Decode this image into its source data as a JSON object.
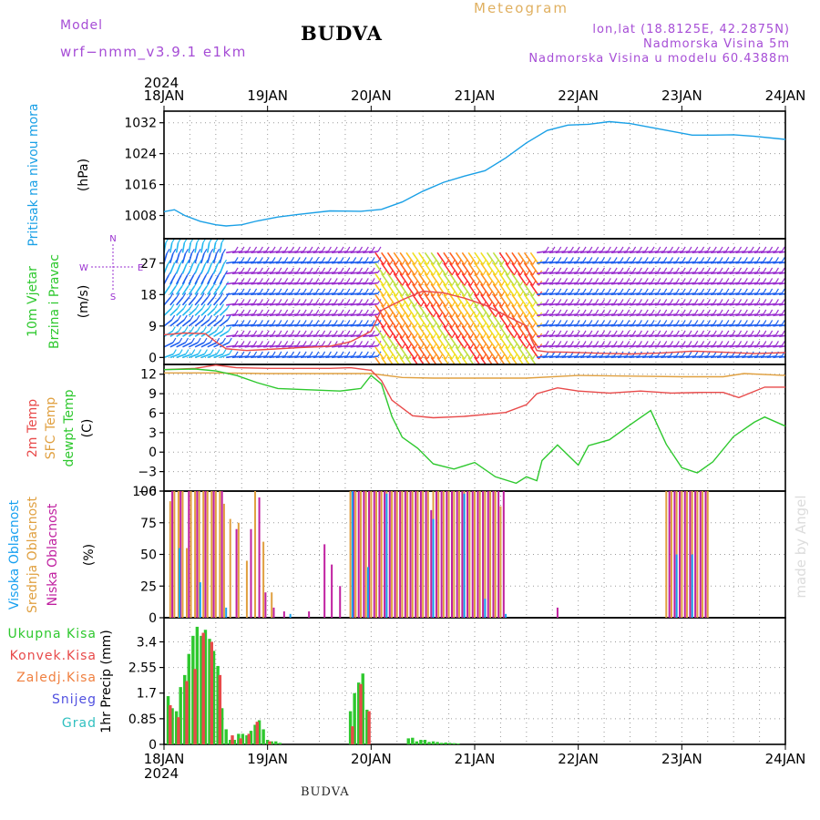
{
  "header": {
    "model_label": "Model",
    "model_version": "wrf−nmm_v3.9.1  e1km",
    "location": "BUDVA",
    "meteogram": "Meteogram",
    "coords": "lon,lat (18.8125E, 42.2875N)",
    "elevation": "Nadmorska Visina 5m",
    "model_elevation": "Nadmorska Visina u modelu 60.4388m"
  },
  "footer": {
    "location": "BUDVA",
    "credit": "made by Angel"
  },
  "colors": {
    "pressure": "#1aa0e6",
    "temp2m": "#e84a4a",
    "sfc_temp": "#e0a040",
    "dewpoint": "#2ec82e",
    "high_cloud": "#18a0f0",
    "mid_cloud": "#e0a040",
    "low_cloud": "#c020a0",
    "total_precip": "#2ec82e",
    "conv_precip": "#e84a4a",
    "frz_precip": "#f08040",
    "snow": "#5050e0",
    "grad": "#30c0c0",
    "wind_purple": "#9a30d0",
    "wind_blue": "#2060f0",
    "wind_cyan": "#20b8f0"
  },
  "chart_data": {
    "x_axis": {
      "year": "2024",
      "ticks": [
        "18JAN",
        "19JAN",
        "20JAN",
        "21JAN",
        "22JAN",
        "23JAN",
        "24JAN"
      ]
    },
    "panels": [
      {
        "id": "pressure",
        "type": "line",
        "ylabel_left": "Pritisak na nivou mora",
        "ylabel_unit": "(hPa)",
        "ylim": [
          1002,
          1035
        ],
        "yticks": [
          "1008",
          "1016",
          "1024",
          "1032"
        ],
        "ytick_values": [
          1008,
          1016,
          1024,
          1032
        ],
        "series": [
          {
            "key": "pressure",
            "color_key": "pressure",
            "x": [
              0,
              0.1,
              0.2,
              0.35,
              0.5,
              0.6,
              0.75,
              0.9,
              1.1,
              1.3,
              1.6,
              1.9,
              2.1,
              2.3,
              2.5,
              2.7,
              2.9,
              3.1,
              3.3,
              3.5,
              3.7,
              3.9,
              4.1,
              4.3,
              4.5,
              4.7,
              4.9,
              5.1,
              5.3,
              5.5,
              5.7,
              6.0
            ],
            "y": [
              1009,
              1009.5,
              1008,
              1006.5,
              1005.6,
              1005.3,
              1005.6,
              1006.6,
              1007.6,
              1008.3,
              1009.2,
              1009.1,
              1009.6,
              1011.5,
              1014.3,
              1016.6,
              1018.2,
              1019.6,
              1022.9,
              1026.8,
              1030.0,
              1031.4,
              1031.6,
              1032.3,
              1031.8,
              1030.8,
              1029.8,
              1028.8,
              1028.8,
              1028.9,
              1028.5,
              1027.7
            ]
          }
        ]
      },
      {
        "id": "wind",
        "type": "line",
        "ylabel_left": "10m Vjetar",
        "ylabel_left2": "Brzina i Pravac",
        "ylabel_unit": "(m/s)",
        "compass": [
          "N",
          "S",
          "E",
          "W"
        ],
        "ylim": [
          -2,
          34
        ],
        "yticks": [
          "0",
          "9",
          "18",
          "27"
        ],
        "ytick_values": [
          0,
          9,
          18,
          27
        ],
        "series": [
          {
            "key": "wind_speed",
            "color_key": "temp2m",
            "x": [
              0,
              0.2,
              0.4,
              0.5,
              0.6,
              0.8,
              1.0,
              1.3,
              1.6,
              1.8,
              2.0,
              2.1,
              2.3,
              2.5,
              2.7,
              2.9,
              3.1,
              3.3,
              3.5,
              3.55,
              3.6,
              3.7,
              3.9,
              4.2,
              4.5,
              4.8,
              5.1,
              5.4,
              5.7,
              6.0
            ],
            "y": [
              6.5,
              7.0,
              6.8,
              4.5,
              2.5,
              2.0,
              2.3,
              2.8,
              3.2,
              4.5,
              7.5,
              13.5,
              16.5,
              19.0,
              18.5,
              17.0,
              15.0,
              12.0,
              9.0,
              5.0,
              2.0,
              1.6,
              1.5,
              1.2,
              1.0,
              1.3,
              1.8,
              1.5,
              1.1,
              1.4
            ]
          }
        ]
      },
      {
        "id": "temperature",
        "type": "line",
        "ylabel_left": "2m Temp",
        "ylabel_left2": "SFC Temp",
        "ylabel_left3": "dewpt Temp",
        "ylabel_unit": "(C)",
        "ylim": [
          -6,
          13.5
        ],
        "yticks": [
          "−6",
          "−3",
          "0",
          "3",
          "6",
          "9",
          "12"
        ],
        "ytick_values": [
          -6,
          -3,
          0,
          3,
          6,
          9,
          12
        ],
        "series": [
          {
            "key": "sfc_temp",
            "color_key": "sfc_temp",
            "x": [
              0,
              0.5,
              1.0,
              1.5,
              2.0,
              2.3,
              2.6,
              3.0,
              3.5,
              4.0,
              4.5,
              5.0,
              5.4,
              5.6,
              6.0
            ],
            "y": [
              12.2,
              12.2,
              12.1,
              12.1,
              12.1,
              11.5,
              11.4,
              11.4,
              11.4,
              11.8,
              11.7,
              11.6,
              11.6,
              12.1,
              11.8
            ]
          },
          {
            "key": "temp2m",
            "color_key": "temp2m",
            "x": [
              0,
              0.3,
              0.5,
              0.7,
              1.0,
              1.3,
              1.6,
              1.8,
              2.0,
              2.1,
              2.2,
              2.4,
              2.6,
              2.9,
              3.1,
              3.3,
              3.5,
              3.6,
              3.8,
              4.0,
              4.3,
              4.6,
              4.9,
              5.2,
              5.4,
              5.55,
              5.8,
              6.0
            ],
            "y": [
              12.7,
              12.9,
              13.4,
              13.0,
              12.9,
              12.9,
              12.9,
              13.0,
              12.6,
              11.0,
              8.0,
              5.6,
              5.3,
              5.5,
              5.8,
              6.1,
              7.3,
              9.0,
              9.9,
              9.4,
              9.1,
              9.4,
              9.1,
              9.2,
              9.2,
              8.4,
              10.0,
              10.0
            ]
          },
          {
            "key": "dewpoint",
            "color_key": "dewpoint",
            "x": [
              0,
              0.3,
              0.5,
              0.7,
              0.9,
              1.1,
              1.4,
              1.7,
              1.9,
              2.0,
              2.1,
              2.2,
              2.3,
              2.45,
              2.6,
              2.8,
              3.0,
              3.2,
              3.4,
              3.5,
              3.6,
              3.65,
              3.8,
              4.0,
              4.1,
              4.3,
              4.5,
              4.7,
              4.85,
              5.0,
              5.15,
              5.3,
              5.5,
              5.7,
              5.8,
              6.0
            ],
            "y": [
              12.7,
              12.8,
              12.5,
              11.8,
              10.7,
              9.8,
              9.6,
              9.4,
              9.8,
              11.8,
              10.5,
              5.5,
              2.3,
              0.6,
              -1.8,
              -2.6,
              -1.6,
              -3.8,
              -4.8,
              -3.8,
              -4.4,
              -1.3,
              1.1,
              -2.0,
              1.0,
              1.9,
              4.2,
              6.4,
              1.2,
              -2.4,
              -3.2,
              -1.5,
              2.4,
              4.6,
              5.4,
              4.0
            ]
          }
        ]
      },
      {
        "id": "cloud",
        "type": "bar",
        "ylabel_left": "Visoka Oblacnost",
        "ylabel_left2": "Srednja Oblacnost",
        "ylabel_left3": "Niska Oblacnost",
        "ylabel_unit": "(%)",
        "ylim": [
          0,
          100
        ],
        "yticks": [
          "0",
          "25",
          "50",
          "75",
          "100"
        ],
        "ytick_values": [
          0,
          25,
          50,
          75,
          100
        ],
        "series": [
          {
            "name": "Srednja Oblacnost",
            "color_key": "mid_cloud",
            "x": [
              0.06,
              0.1,
              0.14,
              0.18,
              0.22,
              0.26,
              0.3,
              0.34,
              0.38,
              0.42,
              0.46,
              0.5,
              0.54,
              0.58,
              0.64,
              0.72,
              0.8,
              0.88,
              0.96,
              1.04,
              1.8,
              1.85,
              1.9,
              1.95,
              2.0,
              2.05,
              2.1,
              2.15,
              2.2,
              2.25,
              2.3,
              2.35,
              2.4,
              2.45,
              2.5,
              2.55,
              2.6,
              2.65,
              2.7,
              2.75,
              2.8,
              2.85,
              2.9,
              2.95,
              3.0,
              3.05,
              3.1,
              3.15,
              3.2,
              3.25,
              4.85,
              4.9,
              4.95,
              5.0,
              5.05,
              5.1,
              5.15,
              5.2,
              5.25
            ],
            "values": [
              92,
              100,
              100,
              100,
              55,
              100,
              100,
              100,
              100,
              100,
              100,
              100,
              100,
              90,
              78,
              75,
              45,
              100,
              60,
              20,
              100,
              100,
              100,
              100,
              100,
              100,
              100,
              100,
              100,
              100,
              100,
              100,
              100,
              100,
              100,
              100,
              100,
              100,
              100,
              100,
              100,
              100,
              100,
              100,
              100,
              100,
              100,
              100,
              100,
              88,
              100,
              100,
              100,
              100,
              100,
              100,
              100,
              100,
              100
            ]
          },
          {
            "name": "Niska Oblacnost",
            "color_key": "low_cloud",
            "x": [
              0.08,
              0.16,
              0.24,
              0.32,
              0.4,
              0.48,
              0.56,
              0.7,
              0.84,
              0.92,
              0.98,
              1.06,
              1.16,
              1.4,
              1.55,
              1.62,
              1.7,
              1.83,
              1.88,
              1.93,
              1.98,
              2.03,
              2.08,
              2.13,
              2.18,
              2.23,
              2.28,
              2.33,
              2.38,
              2.43,
              2.48,
              2.53,
              2.58,
              2.63,
              2.68,
              2.73,
              2.78,
              2.83,
              2.88,
              2.93,
              2.98,
              3.03,
              3.08,
              3.13,
              3.18,
              3.23,
              3.28,
              3.8,
              4.88,
              4.93,
              4.98,
              5.03,
              5.08,
              5.13,
              5.18,
              5.23
            ],
            "values": [
              100,
              100,
              100,
              100,
              100,
              100,
              100,
              70,
              70,
              95,
              20,
              8,
              5,
              5,
              58,
              42,
              25,
              100,
              100,
              100,
              100,
              100,
              100,
              100,
              100,
              100,
              100,
              100,
              100,
              100,
              100,
              100,
              85,
              100,
              100,
              100,
              100,
              100,
              100,
              100,
              100,
              100,
              100,
              100,
              100,
              100,
              100,
              8,
              100,
              100,
              100,
              100,
              100,
              100,
              100,
              100
            ]
          },
          {
            "name": "Visoka Oblacnost",
            "color_key": "high_cloud",
            "x": [
              0.15,
              0.35,
              0.6,
              1.22,
              1.82,
              1.97,
              2.15,
              2.6,
              2.9,
              3.1,
              3.3,
              4.95,
              5.1
            ],
            "values": [
              55,
              28,
              8,
              3,
              100,
              40,
              98,
              78,
              98,
              15,
              3,
              50,
              50
            ]
          }
        ]
      },
      {
        "id": "precip",
        "type": "bar",
        "ylabel_left": "1hr Precip (mm)",
        "legend": [
          "Ukupna Kisa",
          "Konvek.Kisa",
          "Zaledj.Kisa",
          "Snijeg",
          "Grad"
        ],
        "ylim": [
          0,
          4.2
        ],
        "yticks": [
          "0",
          "0.85",
          "1.7",
          "2.55",
          "3.4"
        ],
        "ytick_values": [
          0,
          0.85,
          1.7,
          2.55,
          3.4
        ],
        "series": [
          {
            "name": "Ukupna Kisa",
            "color_key": "total_precip",
            "x": [
              0.04,
              0.08,
              0.12,
              0.16,
              0.2,
              0.24,
              0.28,
              0.32,
              0.36,
              0.4,
              0.44,
              0.48,
              0.52,
              0.56,
              0.6,
              0.64,
              0.68,
              0.72,
              0.76,
              0.8,
              0.84,
              0.88,
              0.92,
              0.96,
              1.0,
              1.04,
              1.08,
              1.12,
              1.8,
              1.84,
              1.88,
              1.92,
              1.96,
              2.36,
              2.4,
              2.44,
              2.48,
              2.52,
              2.56,
              2.6,
              2.64,
              2.68,
              2.72,
              2.76,
              2.8,
              2.84
            ],
            "values": [
              1.6,
              1.2,
              1.1,
              1.9,
              2.3,
              3.0,
              3.6,
              3.9,
              3.6,
              3.8,
              3.5,
              3.1,
              2.6,
              1.2,
              0.5,
              0.15,
              0.15,
              0.35,
              0.35,
              0.3,
              0.45,
              0.65,
              0.8,
              0.5,
              0.15,
              0.1,
              0.1,
              0.05,
              1.1,
              1.7,
              2.05,
              2.35,
              1.15,
              0.2,
              0.22,
              0.1,
              0.15,
              0.15,
              0.08,
              0.1,
              0.08,
              0.05,
              0.06,
              0.05,
              0.04,
              0.03
            ]
          },
          {
            "name": "Konvek.Kisa",
            "color_key": "conv_precip",
            "x": [
              0.06,
              0.14,
              0.22,
              0.3,
              0.38,
              0.46,
              0.54,
              0.66,
              0.74,
              0.82,
              0.9,
              1.02,
              1.82,
              1.9,
              1.98
            ],
            "values": [
              1.3,
              0.9,
              2.1,
              2.5,
              3.7,
              3.4,
              2.3,
              0.3,
              0.2,
              0.35,
              0.75,
              0.1,
              0.6,
              2.0,
              1.1
            ]
          }
        ]
      }
    ]
  }
}
